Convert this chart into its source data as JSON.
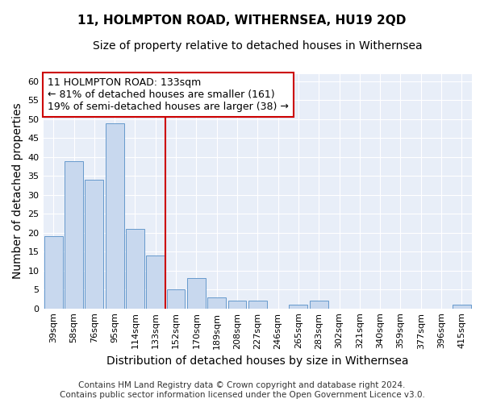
{
  "title": "11, HOLMPTON ROAD, WITHERNSEA, HU19 2QD",
  "subtitle": "Size of property relative to detached houses in Withernsea",
  "xlabel": "Distribution of detached houses by size in Withernsea",
  "ylabel": "Number of detached properties",
  "categories": [
    "39sqm",
    "58sqm",
    "76sqm",
    "95sqm",
    "114sqm",
    "133sqm",
    "152sqm",
    "170sqm",
    "189sqm",
    "208sqm",
    "227sqm",
    "246sqm",
    "265sqm",
    "283sqm",
    "302sqm",
    "321sqm",
    "340sqm",
    "359sqm",
    "377sqm",
    "396sqm",
    "415sqm"
  ],
  "values": [
    19,
    39,
    34,
    49,
    21,
    14,
    5,
    8,
    3,
    2,
    2,
    0,
    1,
    2,
    0,
    0,
    0,
    0,
    0,
    0,
    1
  ],
  "bar_color": "#c8d8ee",
  "bar_edge_color": "#6699cc",
  "highlight_index": 5,
  "highlight_line_color": "#cc0000",
  "ylim": [
    0,
    62
  ],
  "yticks": [
    0,
    5,
    10,
    15,
    20,
    25,
    30,
    35,
    40,
    45,
    50,
    55,
    60
  ],
  "annotation_line1": "11 HOLMPTON ROAD: 133sqm",
  "annotation_line2": "← 81% of detached houses are smaller (161)",
  "annotation_line3": "19% of semi-detached houses are larger (38) →",
  "annotation_box_color": "#ffffff",
  "annotation_box_edge_color": "#cc0000",
  "footer_line1": "Contains HM Land Registry data © Crown copyright and database right 2024.",
  "footer_line2": "Contains public sector information licensed under the Open Government Licence v3.0.",
  "background_color": "#ffffff",
  "plot_bg_color": "#e8eef8",
  "grid_color": "#ffffff",
  "title_fontsize": 11,
  "subtitle_fontsize": 10,
  "axis_label_fontsize": 10,
  "tick_fontsize": 8,
  "annotation_fontsize": 9,
  "footer_fontsize": 7.5
}
